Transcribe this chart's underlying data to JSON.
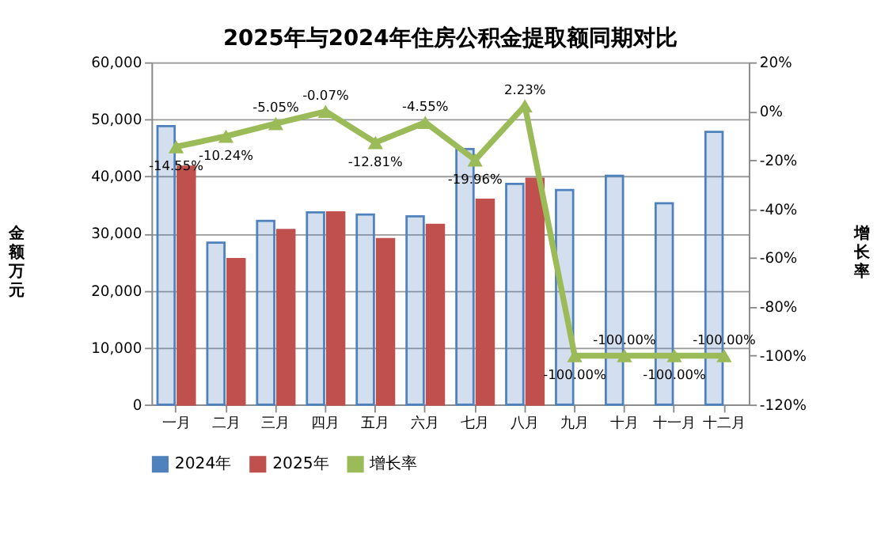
{
  "chart_data": {
    "type": "bar",
    "title": "2025年与2024年住房公积金提取额同期对比",
    "categories": [
      "一月",
      "二月",
      "三月",
      "四月",
      "五月",
      "六月",
      "七月",
      "八月",
      "九月",
      "十月",
      "十一月",
      "十二月"
    ],
    "series": [
      {
        "name": "2024年",
        "color": "#4f81bd",
        "values": [
          48800,
          28400,
          32200,
          33700,
          33300,
          33000,
          44800,
          38700,
          37600,
          40100,
          35300,
          47800
        ]
      },
      {
        "name": "2025年",
        "color": "#c0504d",
        "values": [
          41700,
          25500,
          30600,
          33700,
          29000,
          31500,
          35900,
          39600,
          null,
          null,
          null,
          null
        ]
      },
      {
        "name": "增长率",
        "type": "line",
        "axis": "y2",
        "color": "#9bbb59",
        "marker": "triangle",
        "values": [
          -14.55,
          -10.24,
          -5.05,
          -0.07,
          -12.81,
          -4.55,
          -19.96,
          2.23,
          -100.0,
          -100.0,
          -100.0,
          -100.0
        ],
        "value_labels": [
          "-14.55%",
          "-10.24%",
          "-5.05%",
          "-0.07%",
          "-12.81%",
          "-4.55%",
          "-19.96%",
          "2.23%",
          "-100.00%",
          "-100.00%",
          "-100.00%",
          "-100.00%"
        ]
      }
    ],
    "ylabel": "金额万元",
    "y2label": "增长率",
    "ylim": [
      0,
      60000
    ],
    "yticks": [
      {
        "value": 0,
        "label": "0"
      },
      {
        "value": 10000,
        "label": "10,000"
      },
      {
        "value": 20000,
        "label": "20,000"
      },
      {
        "value": 30000,
        "label": "30,000"
      },
      {
        "value": 40000,
        "label": "40,000"
      },
      {
        "value": 50000,
        "label": "50,000"
      },
      {
        "value": 60000,
        "label": "60,000"
      }
    ],
    "y2lim": [
      -120,
      20
    ],
    "y2ticks": [
      {
        "value": -120,
        "label": "-120%"
      },
      {
        "value": -100,
        "label": "-100%"
      },
      {
        "value": -80,
        "label": "-80%"
      },
      {
        "value": -60,
        "label": "-60%"
      },
      {
        "value": -40,
        "label": "-40%"
      },
      {
        "value": -20,
        "label": "-20%"
      },
      {
        "value": 0,
        "label": "0%"
      },
      {
        "value": 20,
        "label": "20%"
      }
    ],
    "grid": "y",
    "legend": "bottom"
  }
}
